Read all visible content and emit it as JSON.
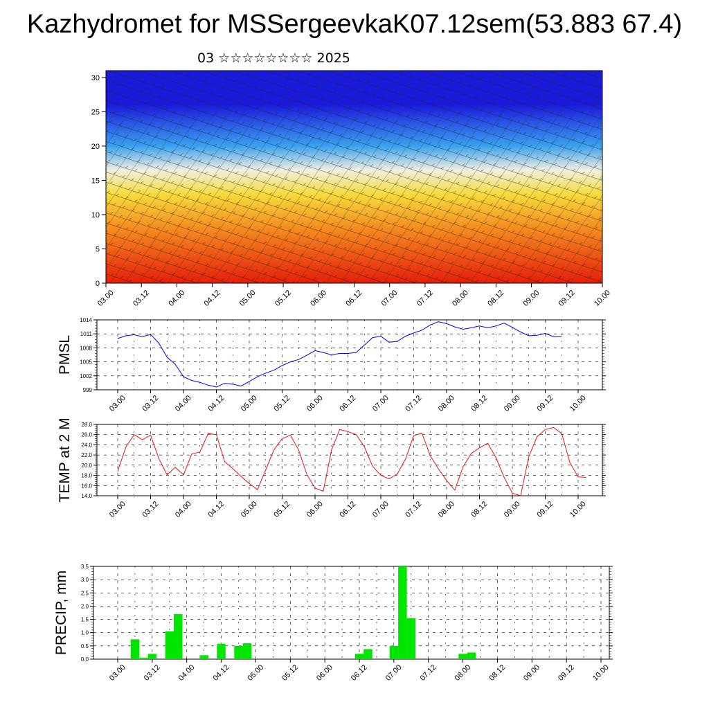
{
  "title": "Kazhydromet for MSSergeevkaK07.12sem(53.883 67.4)",
  "subtitle": "03 ☆☆☆☆☆☆☆☆ 2025",
  "time_ticks": [
    "03.00",
    "03.12",
    "04.00",
    "04.12",
    "05.00",
    "05.12",
    "06.00",
    "06.12",
    "07.00",
    "07.12",
    "08.00",
    "08.12",
    "09.00",
    "09.12",
    "10.00"
  ],
  "chart_data": [
    {
      "type": "heatmap",
      "name": "cross-section",
      "y_ticks": [
        "0",
        "5",
        "10",
        "15",
        "20",
        "25",
        "30"
      ],
      "ylim": [
        0,
        31
      ],
      "x": [
        "03.00",
        "10.00"
      ],
      "colors": {
        "top": "#1a1adc",
        "mid_blue": "#3aa2f0",
        "transition": "#f0f0e0",
        "yellow": "#f5dc3c",
        "orange": "#f58c1e",
        "bottom": "#e61e0a"
      },
      "layers": [
        {
          "height": 0,
          "color": "bottom"
        },
        {
          "height": 8,
          "color": "orange"
        },
        {
          "height": 13,
          "color": "yellow"
        },
        {
          "height": 16.5,
          "color": "transition"
        },
        {
          "height": 20,
          "color": "mid_blue"
        },
        {
          "height": 26,
          "color": "top"
        }
      ],
      "overlay": "wind barbs"
    },
    {
      "type": "line",
      "ylabel": "PMSL",
      "y_ticks": [
        "999",
        "1002",
        "1005",
        "1008",
        "1011",
        "1014"
      ],
      "ylim": [
        999,
        1014
      ],
      "color": "#0000e6",
      "x_start": 0,
      "x_step": 3,
      "values": [
        1010,
        1010.6,
        1010.8,
        1010.4,
        1010.9,
        1009,
        1006,
        1004.5,
        1001.8,
        1001,
        1000.6,
        1000,
        999.6,
        1000.4,
        1000.2,
        999.8,
        1000.8,
        1001.8,
        1002.6,
        1003.2,
        1004.2,
        1005,
        1005.5,
        1006.4,
        1007.4,
        1007,
        1006.5,
        1006.8,
        1006.8,
        1007,
        1008.6,
        1010.2,
        1010.5,
        1009.2,
        1009.4,
        1010.5,
        1011.2,
        1011.8,
        1012.9,
        1013.6,
        1013.2,
        1012.5,
        1012,
        1012.3,
        1012.7,
        1012.3,
        1012.7,
        1013.3,
        1012.4,
        1011.4,
        1010.6,
        1010.7,
        1011.1,
        1010.4,
        1010.5
      ]
    },
    {
      "type": "line",
      "ylabel": "TEMP at 2 M",
      "y_ticks": [
        "14.0",
        "16.0",
        "18.0",
        "20.0",
        "22.0",
        "24.0",
        "26.0",
        "28.0"
      ],
      "ylim": [
        14,
        28
      ],
      "color": "#e61414",
      "x_start": 0,
      "x_step": 3,
      "values": [
        18.8,
        23.6,
        26.0,
        25.0,
        25.9,
        21.3,
        18.1,
        19.6,
        18.1,
        22.2,
        22.6,
        26.2,
        26.0,
        20.7,
        19.3,
        17.8,
        16.4,
        15.2,
        19.1,
        23.0,
        25.2,
        25.9,
        23.0,
        18.2,
        15.5,
        14.9,
        23.0,
        27.0,
        26.6,
        26.0,
        23.6,
        19.8,
        18.0,
        17.3,
        18.3,
        21.2,
        25.8,
        26.3,
        21.9,
        19.3,
        17.0,
        15.1,
        19.7,
        22.3,
        23.4,
        24.3,
        21.5,
        17.6,
        14.5,
        14.0,
        21.7,
        25.6,
        27.0,
        27.4,
        26.2,
        20.5,
        17.7,
        17.6
      ]
    },
    {
      "type": "bar",
      "ylabel": "PRECIP, mm",
      "y_ticks": [
        "0.0",
        "0.5",
        "1.0",
        "1.5",
        "2.0",
        "2.5",
        "3.0",
        "3.5"
      ],
      "ylim": [
        0,
        3.5
      ],
      "color": "#00e600",
      "x_start": 3,
      "x_step": 3,
      "values": [
        0,
        0.75,
        0.05,
        0.2,
        0,
        1.05,
        1.7,
        0,
        0,
        0.15,
        0,
        0.58,
        0,
        0.5,
        0.6,
        0.03,
        0,
        0,
        0,
        0,
        0,
        0,
        0,
        0,
        0,
        0,
        0,
        0.2,
        0.38,
        0,
        0,
        0.5,
        3.5,
        1.55,
        0,
        0,
        0,
        0,
        0,
        0.2,
        0.25,
        0,
        0,
        0,
        0,
        0,
        0,
        0,
        0,
        0,
        0,
        0,
        0,
        0,
        0,
        0
      ]
    }
  ]
}
